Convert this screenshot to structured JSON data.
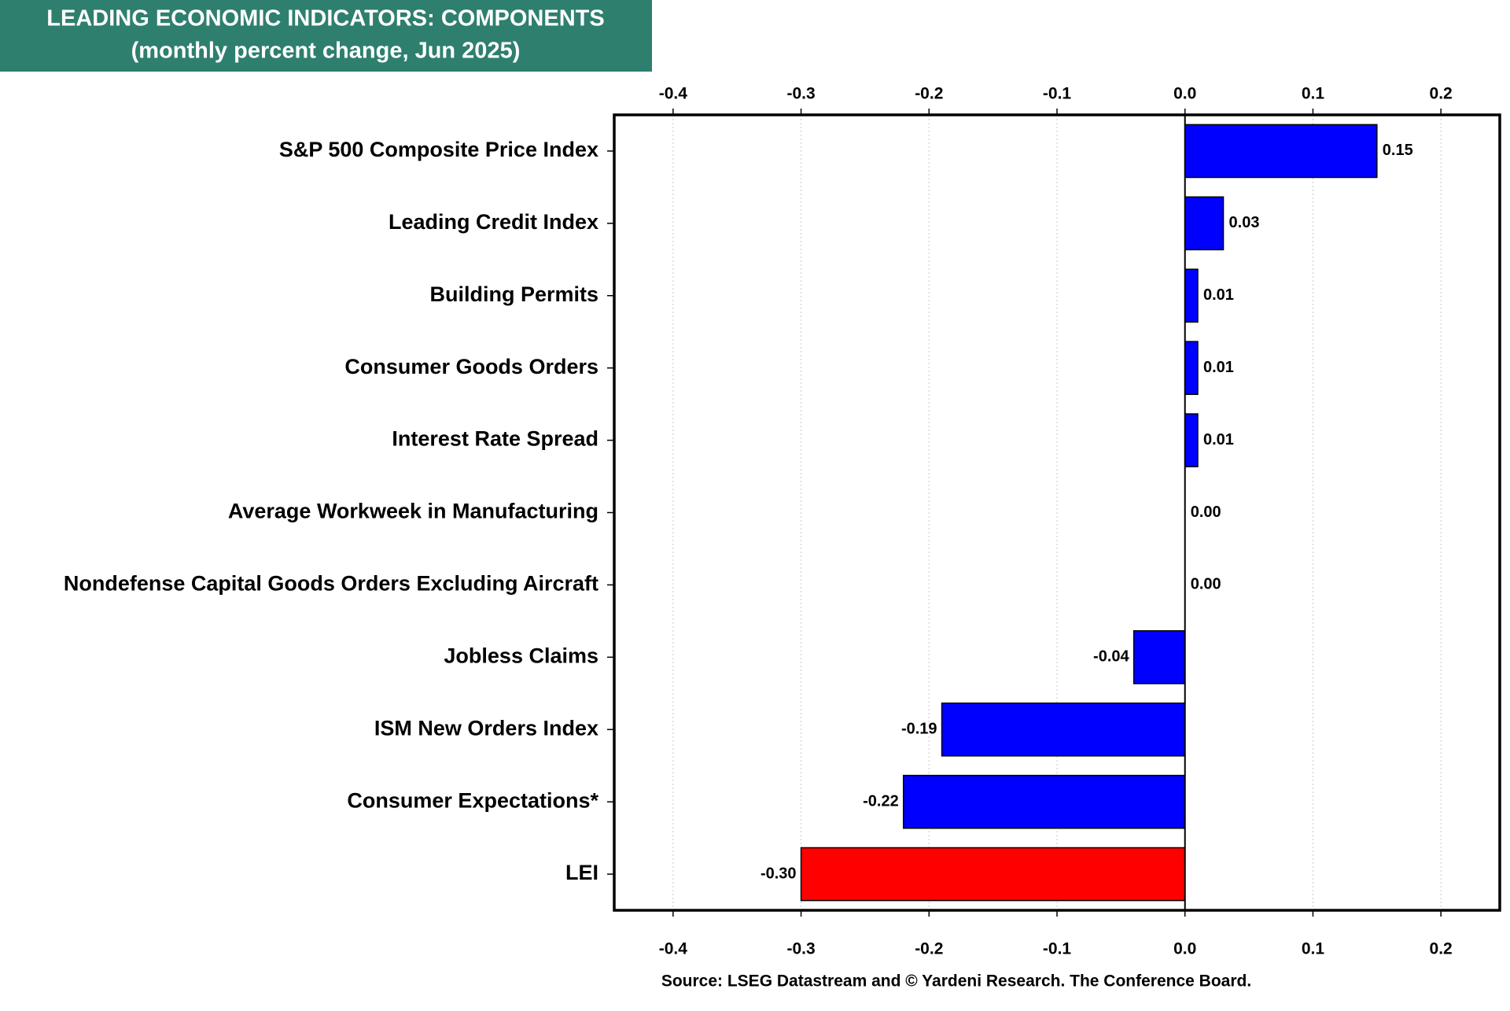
{
  "chart_data": {
    "type": "hbar",
    "title": "LEADING ECONOMIC INDICATORS: COMPONENTS",
    "subtitle": "(monthly percent change, Jun 2025)",
    "source": "Source: LSEG Datastream and © Yardeni Research. The Conference Board.",
    "categories": [
      "S&P 500 Composite Price Index",
      "Leading Credit Index",
      "Building Permits",
      "Consumer Goods Orders",
      "Interest Rate Spread",
      "Average Workweek in Manufacturing",
      "Nondefense Capital Goods Orders Excluding Aircraft",
      "Jobless Claims",
      "ISM New Orders Index",
      "Consumer Expectations*",
      "LEI"
    ],
    "values": [
      0.15,
      0.03,
      0.01,
      0.01,
      0.01,
      0.0,
      0.0,
      -0.04,
      -0.19,
      -0.22,
      -0.3
    ],
    "value_labels": [
      "0.15",
      "0.03",
      "0.01",
      "0.01",
      "0.01",
      "0.00",
      "0.00",
      "-0.04",
      "-0.19",
      "-0.22",
      "-0.30"
    ],
    "colors": [
      "#0000ff",
      "#0000ff",
      "#0000ff",
      "#0000ff",
      "#0000ff",
      "#0000ff",
      "#0000ff",
      "#0000ff",
      "#0000ff",
      "#0000ff",
      "#ff0000"
    ],
    "xlim": [
      -0.446,
      0.246
    ],
    "xticks": [
      -0.4,
      -0.3,
      -0.2,
      -0.1,
      {
        "value": 0,
        "label": "0.0"
      },
      0.1,
      0.2
    ],
    "grid": true
  }
}
